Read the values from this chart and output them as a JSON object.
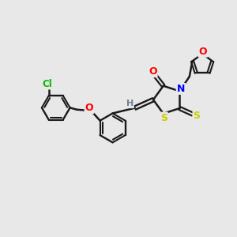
{
  "bg_color": "#e8e8e8",
  "bond_color": "#1a1a1a",
  "atom_colors": {
    "O": "#ff0000",
    "N": "#0000ff",
    "S": "#cccc00",
    "Cl": "#00bb00",
    "H": "#708090",
    "C": "#1a1a1a"
  },
  "figsize": [
    3.0,
    3.0
  ],
  "dpi": 100
}
